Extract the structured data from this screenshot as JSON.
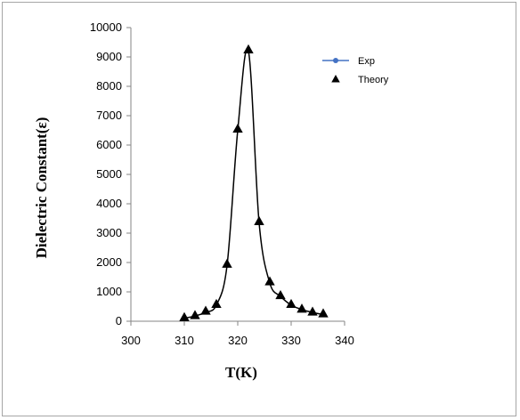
{
  "chart_data": {
    "type": "scatter",
    "title": "",
    "xlabel": "T(K)",
    "ylabel": "Dielectric Constant(ε)",
    "xlim": [
      300,
      340
    ],
    "ylim": [
      0,
      10000
    ],
    "x_ticks": [
      300,
      310,
      320,
      330,
      340
    ],
    "y_ticks": [
      0,
      1000,
      2000,
      3000,
      4000,
      5000,
      6000,
      7000,
      8000,
      9000,
      10000
    ],
    "grid": false,
    "legend_position": "top-right",
    "series": [
      {
        "name": "Exp",
        "kind": "line",
        "color": "#4472c4",
        "line_color": "#000000",
        "x": [
          310,
          312,
          314,
          316,
          318,
          320,
          322,
          324,
          326,
          328,
          330,
          332,
          334,
          336
        ],
        "y": [
          100,
          180,
          300,
          550,
          1900,
          6500,
          9200,
          3350,
          1300,
          850,
          550,
          400,
          300,
          230
        ]
      },
      {
        "name": "Theory",
        "kind": "markers",
        "marker": "triangle",
        "color": "#000000",
        "x": [
          310,
          312,
          314,
          316,
          318,
          320,
          322,
          324,
          326,
          328,
          330,
          332,
          334,
          336
        ],
        "y": [
          130,
          200,
          350,
          580,
          1950,
          6550,
          9250,
          3400,
          1350,
          880,
          580,
          420,
          320,
          260
        ]
      }
    ]
  }
}
